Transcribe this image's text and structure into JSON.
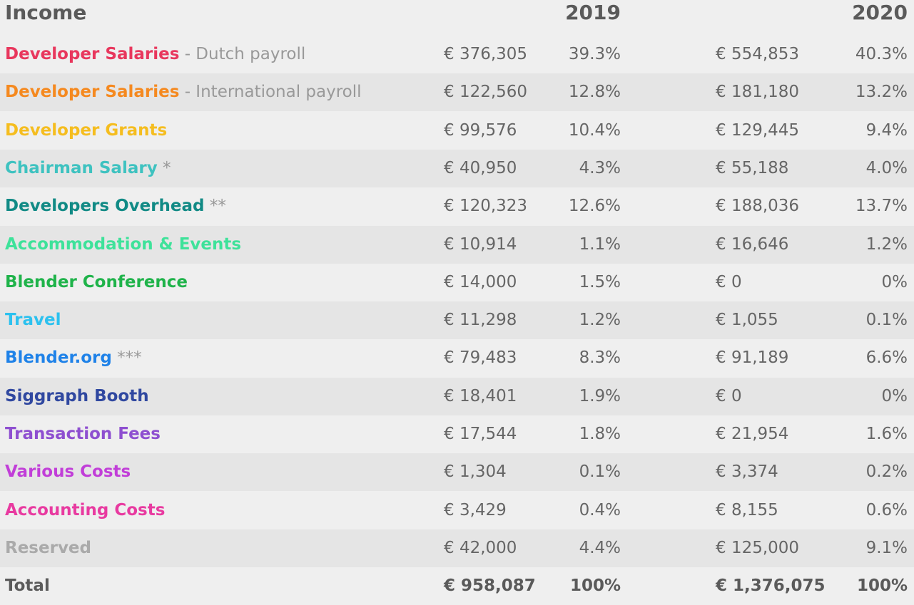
{
  "header": {
    "title": "Income",
    "year_a": "2019",
    "year_b": "2020"
  },
  "rows": [
    {
      "name": "Developer Salaries",
      "suffix": " - Dutch payroll",
      "color": "#e8375d",
      "a2019": "€ 376,305",
      "p2019": "39.3%",
      "a2020": "€ 554,853",
      "p2020": "40.3%"
    },
    {
      "name": "Developer Salaries",
      "suffix": " - International payroll",
      "color": "#f5891f",
      "a2019": "€ 122,560",
      "p2019": "12.8%",
      "a2020": "€ 181,180",
      "p2020": "13.2%"
    },
    {
      "name": "Developer Grants",
      "suffix": "",
      "color": "#f5bd1f",
      "a2019": "€ 99,576",
      "p2019": "10.4%",
      "a2020": "€ 129,445",
      "p2020": "9.4%"
    },
    {
      "name": "Chairman Salary",
      "suffix": " *",
      "color": "#3ec2c0",
      "a2019": "€ 40,950",
      "p2019": "4.3%",
      "a2020": "€ 55,188",
      "p2020": "4.0%"
    },
    {
      "name": "Developers Overhead",
      "suffix": " **",
      "color": "#118a85",
      "a2019": "€ 120,323",
      "p2019": "12.6%",
      "a2020": "€ 188,036",
      "p2020": "13.7%"
    },
    {
      "name": "Accommodation & Events",
      "suffix": "",
      "color": "#3ee29a",
      "a2019": "€ 10,914",
      "p2019": "1.1%",
      "a2020": "€ 16,646",
      "p2020": "1.2%"
    },
    {
      "name": "Blender Conference",
      "suffix": "",
      "color": "#1fb34a",
      "a2019": "€ 14,000",
      "p2019": "1.5%",
      "a2020": "€ 0",
      "p2020": "0%"
    },
    {
      "name": "Travel",
      "suffix": "",
      "color": "#2cc1ef",
      "a2019": "€ 11,298",
      "p2019": "1.2%",
      "a2020": "€ 1,055",
      "p2020": "0.1%"
    },
    {
      "name": "Blender.org",
      "suffix": " ***",
      "color": "#1f82e8",
      "a2019": "€ 79,483",
      "p2019": "8.3%",
      "a2020": "€ 91,189",
      "p2020": "6.6%"
    },
    {
      "name": "Siggraph Booth",
      "suffix": "",
      "color": "#3048a0",
      "a2019": "€ 18,401",
      "p2019": "1.9%",
      "a2020": "€ 0",
      "p2020": "0%"
    },
    {
      "name": "Transaction Fees",
      "suffix": "",
      "color": "#8e4fd0",
      "a2019": "€ 17,544",
      "p2019": "1.8%",
      "a2020": "€ 21,954",
      "p2020": "1.6%"
    },
    {
      "name": "Various Costs",
      "suffix": "",
      "color": "#c13ed8",
      "a2019": "€ 1,304",
      "p2019": "0.1%",
      "a2020": "€ 3,374",
      "p2020": "0.2%"
    },
    {
      "name": "Accounting Costs",
      "suffix": "",
      "color": "#e83aa0",
      "a2019": "€ 3,429",
      "p2019": "0.4%",
      "a2020": "€ 8,155",
      "p2020": "0.6%"
    },
    {
      "name": "Reserved",
      "suffix": "",
      "color": "#aaaaaa",
      "a2019": "€ 42,000",
      "p2019": "4.4%",
      "a2020": "€ 125,000",
      "p2020": "9.1%"
    }
  ],
  "total": {
    "label": "Total",
    "a2019": "€ 958,087",
    "p2019": "100%",
    "a2020": "€ 1,376,075",
    "p2020": "100%"
  }
}
